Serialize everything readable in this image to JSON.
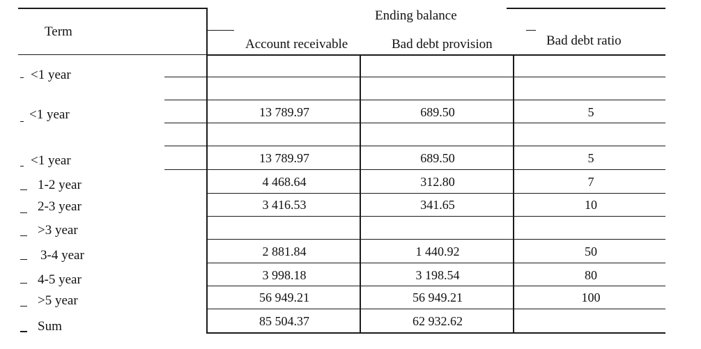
{
  "header": {
    "term": "Term",
    "group": "Ending balance",
    "col_ar": "Account receivable",
    "col_bdp": "Bad debt provision",
    "col_ratio": "Bad debt ratio"
  },
  "rows": [
    {
      "term": "<1 year",
      "ar": "",
      "bdp": "",
      "ratio": ""
    },
    {
      "term": "<1 year",
      "ar": "13 789.97",
      "bdp": "689.50",
      "ratio": "5"
    },
    {
      "term": "",
      "ar": "",
      "bdp": "",
      "ratio": ""
    },
    {
      "term": "<1 year",
      "ar": "13 789.97",
      "bdp": "689.50",
      "ratio": "5"
    },
    {
      "term": "1-2 year",
      "ar": "4 468.64",
      "bdp": "312.80",
      "ratio": "7"
    },
    {
      "term": "2-3 year",
      "ar": "3 416.53",
      "bdp": "341.65",
      "ratio": "10"
    },
    {
      "term": ">3 year",
      "ar": "",
      "bdp": "",
      "ratio": ""
    },
    {
      "term": "3-4 year",
      "ar": "2 881.84",
      "bdp": "1 440.92",
      "ratio": "50"
    },
    {
      "term": "4-5 year",
      "ar": "3 998.18",
      "bdp": "3 198.54",
      "ratio": "80"
    },
    {
      "term": ">5 year",
      "ar": "56 949.21",
      "bdp": "56 949.21",
      "ratio": "100"
    },
    {
      "term": "Sum",
      "ar": "85 504.37",
      "bdp": "62 932.62",
      "ratio": ""
    }
  ]
}
